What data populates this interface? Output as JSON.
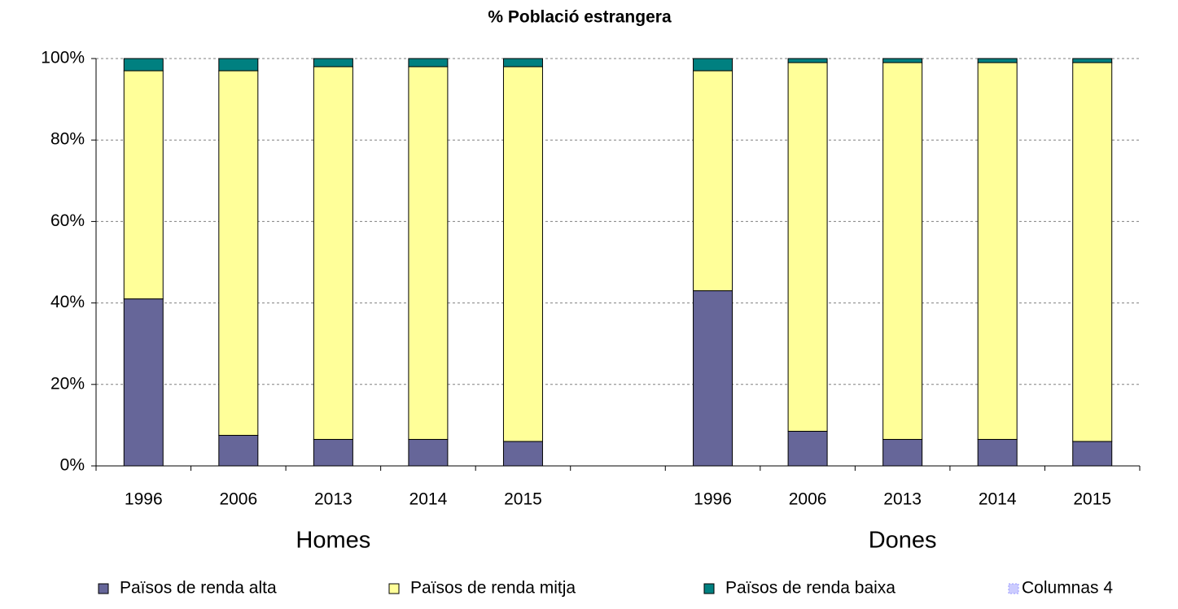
{
  "chart_data": {
    "type": "stacked_bar",
    "title": "% Població estrangera",
    "categories": [
      "1996",
      "2006",
      "2013",
      "2014",
      "2015",
      null,
      "1996",
      "2006",
      "2013",
      "2014",
      "2015"
    ],
    "group_labels": [
      "Homes",
      "Dones"
    ],
    "series": [
      {
        "name": "Països de renda alta",
        "color": "#666699",
        "values": [
          41,
          7.5,
          6.5,
          6.5,
          6,
          null,
          43,
          8.5,
          6.5,
          6.5,
          6
        ]
      },
      {
        "name": "Països de renda mitja",
        "color": "#ffff99",
        "values": [
          56,
          89.5,
          91.5,
          91.5,
          92,
          null,
          54,
          90.5,
          92.5,
          92.5,
          93
        ]
      },
      {
        "name": "Països de renda baixa",
        "color": "#008080",
        "values": [
          3,
          3,
          2,
          2,
          2,
          null,
          3,
          1,
          1,
          1,
          1
        ]
      },
      {
        "name": "Columnas 4",
        "color": "#ccccff",
        "values": [
          null,
          null,
          null,
          null,
          null,
          null,
          null,
          null,
          null,
          null,
          null
        ]
      }
    ],
    "ylim": [
      0,
      100
    ],
    "yticks": [
      {
        "value": 0,
        "label": "0%"
      },
      {
        "value": 20,
        "label": "20%"
      },
      {
        "value": 40,
        "label": "40%"
      },
      {
        "value": 60,
        "label": "60%"
      },
      {
        "value": 80,
        "label": "80%"
      },
      {
        "value": 100,
        "label": "100%"
      }
    ],
    "grid": true,
    "legend": "bottom"
  }
}
